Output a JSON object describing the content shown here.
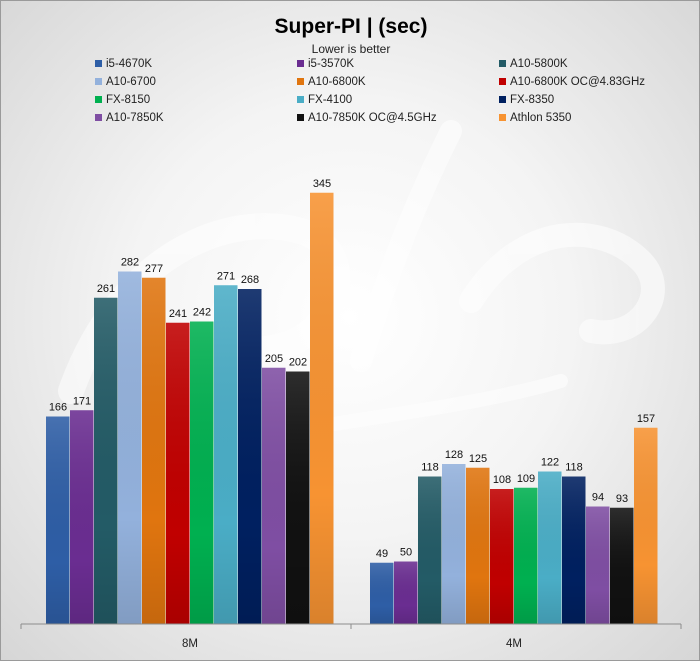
{
  "chart_data": {
    "type": "bar",
    "title": "Super-PI | (sec)",
    "subtitle": "Lower is better",
    "xlabel": "",
    "ylabel": "",
    "ylim": [
      0,
      360
    ],
    "grid": false,
    "legend_position": "top",
    "categories": [
      "8M",
      "4M"
    ],
    "series": [
      {
        "name": "i5-4670K",
        "values": [
          166,
          49
        ],
        "color": "#2e5ea6"
      },
      {
        "name": "i5-3570K",
        "values": [
          171,
          50
        ],
        "color": "#6a2d91"
      },
      {
        "name": "A10-5800K",
        "values": [
          261,
          118
        ],
        "color": "#235b66"
      },
      {
        "name": "A10-6700",
        "values": [
          282,
          128
        ],
        "color": "#93b1dc"
      },
      {
        "name": "A10-6800K",
        "values": [
          277,
          125
        ],
        "color": "#e0750f"
      },
      {
        "name": "A10-6800K OC@4.83GHz",
        "values": [
          241,
          108
        ],
        "color": "#c00000"
      },
      {
        "name": "FX-8150",
        "values": [
          242,
          109
        ],
        "color": "#00b050"
      },
      {
        "name": "FX-4100",
        "values": [
          271,
          122
        ],
        "color": "#4aadc6"
      },
      {
        "name": "FX-8350",
        "values": [
          268,
          118
        ],
        "color": "#002060"
      },
      {
        "name": "A10-7850K",
        "values": [
          205,
          94
        ],
        "color": "#7f4ea3"
      },
      {
        "name": "A10-7850K  OC@4.5GHz",
        "values": [
          202,
          93
        ],
        "color": "#111111"
      },
      {
        "name": "Athlon 5350",
        "values": [
          345,
          157
        ],
        "color": "#f79332"
      }
    ]
  }
}
